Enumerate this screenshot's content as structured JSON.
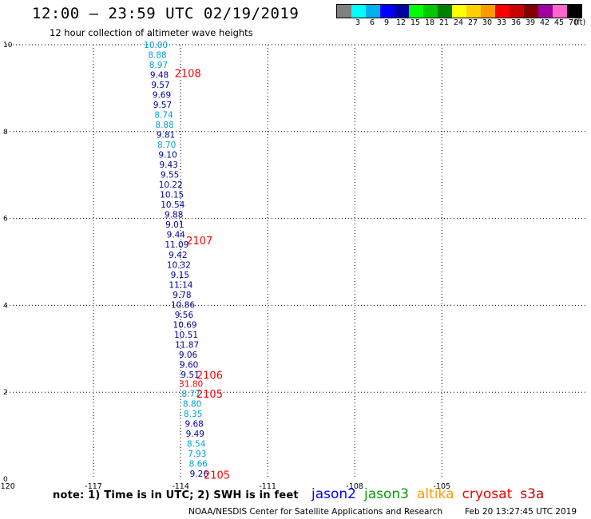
{
  "title": "12:00 – 23:59 UTC 02/19/2019",
  "subtitle": "12 hour collection of altimeter wave heights",
  "legend": {
    "unit": "(ft)",
    "items": [
      {
        "label": "",
        "color": "#808080"
      },
      {
        "label": "3",
        "color": "#00ffff"
      },
      {
        "label": "6",
        "color": "#00b0f0"
      },
      {
        "label": "9",
        "color": "#0000ff"
      },
      {
        "label": "12",
        "color": "#0000a0"
      },
      {
        "label": "15",
        "color": "#00ff00"
      },
      {
        "label": "18",
        "color": "#00c800"
      },
      {
        "label": "21",
        "color": "#008000"
      },
      {
        "label": "24",
        "color": "#ffff00"
      },
      {
        "label": "27",
        "color": "#ffd000"
      },
      {
        "label": "30",
        "color": "#ff9900"
      },
      {
        "label": "33",
        "color": "#ff0000"
      },
      {
        "label": "36",
        "color": "#c80000"
      },
      {
        "label": "39",
        "color": "#800000"
      },
      {
        "label": "42",
        "color": "#a000a0"
      },
      {
        "label": "45",
        "color": "#ff66cc"
      },
      {
        "label": "70",
        "color": "#000000"
      }
    ]
  },
  "note": "note: 1) Time is in UTC; 2) SWH is in feet",
  "missions": [
    {
      "name": "jason2",
      "color": "#0000ff"
    },
    {
      "name": "jason3",
      "color": "#00a000"
    },
    {
      "name": "altika",
      "color": "#ff9900"
    },
    {
      "name": "cryosat",
      "color": "#ff0000"
    },
    {
      "name": "s3a",
      "color": "#c80000"
    }
  ],
  "footer": {
    "agency": "NOAA/NESDIS Center for Satellite Applications and Research",
    "timestamp": "Feb 20 13:27:45 UTC 2019"
  },
  "chart_data": {
    "type": "scatter",
    "xlim": [
      -120,
      -100
    ],
    "ylim": [
      0,
      10
    ],
    "x_ticks": [
      "-120",
      "-117",
      "-114",
      "-111",
      "-108",
      "-105"
    ],
    "y_ticks": [
      "0",
      "2",
      "4",
      "6",
      "8",
      "10"
    ],
    "grid": true,
    "colors": {
      "dark_blue": "#0000a0",
      "light_blue": "#00a0d0",
      "red": "#ff0000"
    },
    "time_labels": [
      {
        "text": "2108",
        "x": -113.75,
        "y": 9.35
      },
      {
        "text": "2107",
        "x": -113.35,
        "y": 5.5
      },
      {
        "text": "2106",
        "x": -113.0,
        "y": 2.4
      },
      {
        "text": "2105",
        "x": -113.0,
        "y": 1.97
      },
      {
        "text": "2105",
        "x": -112.75,
        "y": 0.1
      }
    ],
    "points": [
      {
        "value": "10.00",
        "x": -114.85,
        "y": 10.0,
        "color": "light_blue"
      },
      {
        "value": "8.88",
        "x": -114.8,
        "y": 9.77,
        "color": "light_blue"
      },
      {
        "value": "8.97",
        "x": -114.76,
        "y": 9.54,
        "color": "light_blue"
      },
      {
        "value": "9.48",
        "x": -114.73,
        "y": 9.31,
        "color": "dark_blue"
      },
      {
        "value": "9.57",
        "x": -114.69,
        "y": 9.08,
        "color": "dark_blue"
      },
      {
        "value": "9.69",
        "x": -114.65,
        "y": 8.85,
        "color": "dark_blue"
      },
      {
        "value": "9.57",
        "x": -114.62,
        "y": 8.62,
        "color": "dark_blue"
      },
      {
        "value": "8.74",
        "x": -114.58,
        "y": 8.39,
        "color": "light_blue"
      },
      {
        "value": "8.88",
        "x": -114.55,
        "y": 8.16,
        "color": "light_blue"
      },
      {
        "value": "9.81",
        "x": -114.51,
        "y": 7.93,
        "color": "dark_blue"
      },
      {
        "value": "8.70",
        "x": -114.48,
        "y": 7.7,
        "color": "light_blue"
      },
      {
        "value": "9.10",
        "x": -114.44,
        "y": 7.47,
        "color": "dark_blue"
      },
      {
        "value": "9.43",
        "x": -114.41,
        "y": 7.24,
        "color": "dark_blue"
      },
      {
        "value": "9.55",
        "x": -114.37,
        "y": 7.01,
        "color": "dark_blue"
      },
      {
        "value": "10.22",
        "x": -114.34,
        "y": 6.78,
        "color": "dark_blue"
      },
      {
        "value": "10.15",
        "x": -114.3,
        "y": 6.55,
        "color": "dark_blue"
      },
      {
        "value": "10.54",
        "x": -114.27,
        "y": 6.32,
        "color": "dark_blue"
      },
      {
        "value": "9.88",
        "x": -114.23,
        "y": 6.09,
        "color": "dark_blue"
      },
      {
        "value": "9.01",
        "x": -114.2,
        "y": 5.86,
        "color": "dark_blue"
      },
      {
        "value": "9.44",
        "x": -114.16,
        "y": 5.63,
        "color": "dark_blue"
      },
      {
        "value": "11.09",
        "x": -114.13,
        "y": 5.4,
        "color": "dark_blue"
      },
      {
        "value": "9.42",
        "x": -114.09,
        "y": 5.17,
        "color": "dark_blue"
      },
      {
        "value": "10.32",
        "x": -114.06,
        "y": 4.94,
        "color": "dark_blue"
      },
      {
        "value": "9.15",
        "x": -114.02,
        "y": 4.71,
        "color": "dark_blue"
      },
      {
        "value": "11.14",
        "x": -113.99,
        "y": 4.48,
        "color": "dark_blue"
      },
      {
        "value": "9.78",
        "x": -113.95,
        "y": 4.25,
        "color": "dark_blue"
      },
      {
        "value": "10.86",
        "x": -113.92,
        "y": 4.02,
        "color": "dark_blue"
      },
      {
        "value": "9.56",
        "x": -113.88,
        "y": 3.79,
        "color": "dark_blue"
      },
      {
        "value": "10.69",
        "x": -113.85,
        "y": 3.56,
        "color": "dark_blue"
      },
      {
        "value": "10.51",
        "x": -113.81,
        "y": 3.33,
        "color": "dark_blue"
      },
      {
        "value": "11.87",
        "x": -113.78,
        "y": 3.1,
        "color": "dark_blue"
      },
      {
        "value": "9.06",
        "x": -113.74,
        "y": 2.87,
        "color": "dark_blue"
      },
      {
        "value": "9.60",
        "x": -113.71,
        "y": 2.64,
        "color": "dark_blue"
      },
      {
        "value": "9.51",
        "x": -113.67,
        "y": 2.41,
        "color": "dark_blue"
      },
      {
        "value": "31.80",
        "x": -113.64,
        "y": 2.2,
        "color": "red"
      },
      {
        "value": "8.77",
        "x": -113.64,
        "y": 1.97,
        "color": "light_blue"
      },
      {
        "value": "8.80",
        "x": -113.6,
        "y": 1.74,
        "color": "light_blue"
      },
      {
        "value": "8.35",
        "x": -113.57,
        "y": 1.51,
        "color": "light_blue"
      },
      {
        "value": "9.68",
        "x": -113.53,
        "y": 1.28,
        "color": "dark_blue"
      },
      {
        "value": "9.49",
        "x": -113.5,
        "y": 1.05,
        "color": "dark_blue"
      },
      {
        "value": "8.54",
        "x": -113.46,
        "y": 0.82,
        "color": "light_blue"
      },
      {
        "value": "7.93",
        "x": -113.43,
        "y": 0.59,
        "color": "light_blue"
      },
      {
        "value": "8.66",
        "x": -113.39,
        "y": 0.36,
        "color": "light_blue"
      },
      {
        "value": "9.26",
        "x": -113.36,
        "y": 0.13,
        "color": "dark_blue"
      }
    ]
  }
}
